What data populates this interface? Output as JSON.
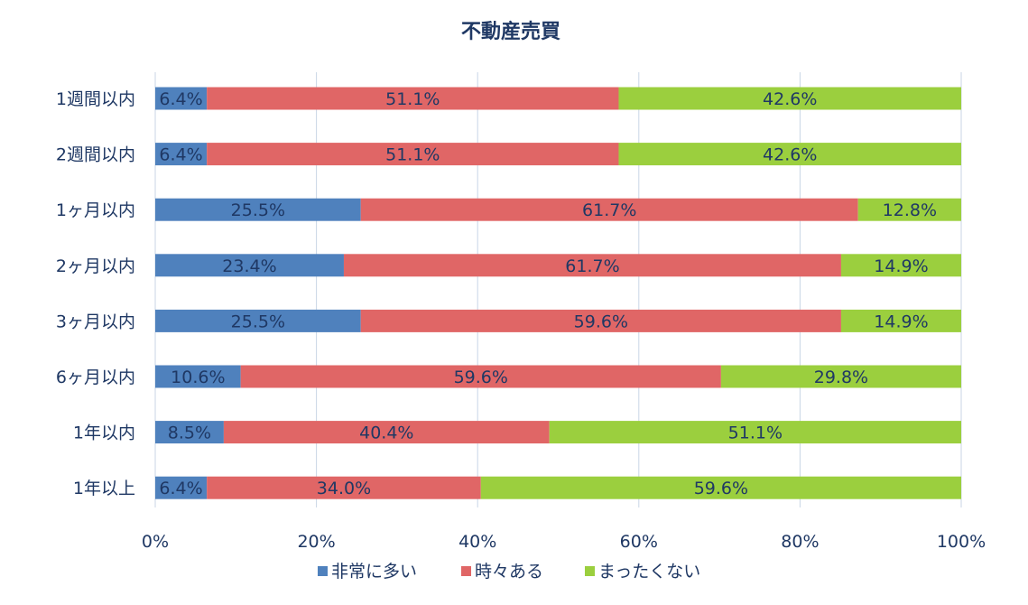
{
  "chart_data": {
    "type": "bar",
    "orientation": "horizontal",
    "stacked": true,
    "percent": true,
    "title": "不動産売買",
    "categories": [
      "1週間以内",
      "2週間以内",
      "1ヶ月以内",
      "2ヶ月以内",
      "3ヶ月以内",
      "6ヶ月以内",
      "1年以内",
      "1年以上"
    ],
    "series": [
      {
        "name": "非常に多い",
        "color": "#4f81bd",
        "values": [
          6.4,
          6.4,
          25.5,
          23.4,
          25.5,
          10.6,
          8.5,
          6.4
        ],
        "labels": [
          "6.4%",
          "6.4%",
          "25.5%",
          "23.4%",
          "25.5%",
          "10.6%",
          "8.5%",
          "6.4%"
        ]
      },
      {
        "name": "時々ある",
        "color": "#e06666",
        "values": [
          51.1,
          51.1,
          61.7,
          61.7,
          59.6,
          59.6,
          40.4,
          34.0
        ],
        "labels": [
          "51.1%",
          "51.1%",
          "61.7%",
          "61.7%",
          "59.6%",
          "59.6%",
          "40.4%",
          "34.0%"
        ]
      },
      {
        "name": "まったくない",
        "color": "#9bcf3e",
        "values": [
          42.6,
          42.6,
          12.8,
          14.9,
          14.9,
          29.8,
          51.1,
          59.6
        ],
        "labels": [
          "42.6%",
          "42.6%",
          "12.8%",
          "14.9%",
          "14.9%",
          "29.8%",
          "51.1%",
          "59.6%"
        ]
      }
    ],
    "xlim": [
      0,
      100
    ],
    "xticks": [
      0,
      20,
      40,
      60,
      80,
      100
    ],
    "xtick_labels": [
      "0%",
      "20%",
      "40%",
      "60%",
      "80%",
      "100%"
    ],
    "grid": true,
    "legend_position": "bottom"
  }
}
